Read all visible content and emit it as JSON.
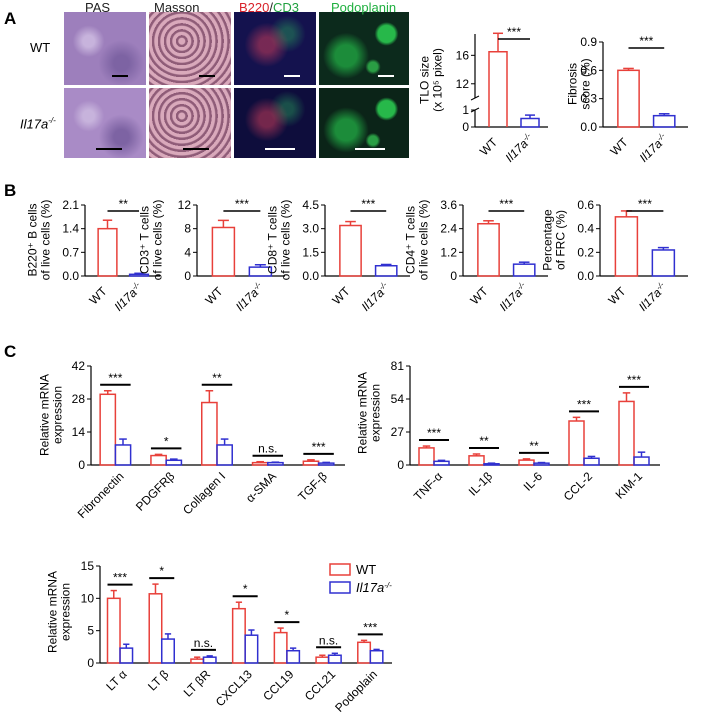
{
  "panel_letters": [
    "A",
    "B",
    "C"
  ],
  "histology": {
    "rows": [
      "WT",
      "Il17a-/-"
    ],
    "columns": [
      "PAS",
      "Masson",
      "B220",
      "/",
      "CD3",
      "Podoplanin"
    ]
  },
  "colors": {
    "wt": "#e8403a",
    "ko": "#3030d0"
  },
  "legend": {
    "wt": "WT",
    "ko": "Il17a-/-"
  },
  "chart_data": [
    {
      "id": "tlo",
      "type": "bar",
      "categories": [
        "WT",
        "Il17a-/-"
      ],
      "values": [
        16.5,
        0.5
      ],
      "errors": [
        2.6,
        0.2
      ],
      "ylabel": [
        "TLO size",
        "(x 10⁵ pixel)"
      ],
      "ticks": [
        "1",
        "0",
        "12",
        "16"
      ],
      "ylim": [
        0,
        19
      ],
      "axis_break": [
        1,
        10
      ],
      "significance": "***"
    },
    {
      "id": "fib",
      "type": "bar",
      "categories": [
        "WT",
        "Il17a-/-"
      ],
      "values": [
        0.6,
        0.12
      ],
      "errors": [
        0.02,
        0.02
      ],
      "ylabel": [
        "Fibrosis",
        "score (%)"
      ],
      "ticks": [
        "0.0",
        "0.3",
        "0.6",
        "0.9"
      ],
      "ylim": [
        0,
        0.9
      ],
      "significance": "***"
    },
    {
      "id": "b220",
      "type": "bar",
      "categories": [
        "WT",
        "Il17a-/-"
      ],
      "values": [
        1.4,
        0.05
      ],
      "errors": [
        0.25,
        0.03
      ],
      "ylabel": [
        "B220⁺ B cells",
        "of live cells (%)"
      ],
      "ticks": [
        "0.0",
        "0.7",
        "1.4",
        "2.1"
      ],
      "ylim": [
        0,
        2.1
      ],
      "significance": "**"
    },
    {
      "id": "cd3",
      "type": "bar",
      "categories": [
        "WT",
        "Il17a-/-"
      ],
      "values": [
        8.2,
        1.5
      ],
      "errors": [
        1.2,
        0.4
      ],
      "ylabel": [
        "CD3⁺ T cells",
        "of live cells (%)"
      ],
      "ticks": [
        "0",
        "4",
        "8",
        "12"
      ],
      "ylim": [
        0,
        12
      ],
      "significance": "***"
    },
    {
      "id": "cd8",
      "type": "bar",
      "categories": [
        "WT",
        "Il17a-/-"
      ],
      "values": [
        3.2,
        0.65
      ],
      "errors": [
        0.25,
        0.08
      ],
      "ylabel": [
        "CD8⁺ T cells",
        "of live cells (%)"
      ],
      "ticks": [
        "0.0",
        "1.5",
        "3.0",
        "4.5"
      ],
      "ylim": [
        0,
        4.5
      ],
      "significance": "***"
    },
    {
      "id": "cd4",
      "type": "bar",
      "categories": [
        "WT",
        "Il17a-/-"
      ],
      "values": [
        2.65,
        0.6
      ],
      "errors": [
        0.15,
        0.1
      ],
      "ylabel": [
        "CD4⁺ T cells",
        "of live cells (%)"
      ],
      "ticks": [
        "0",
        "1.2",
        "2.4",
        "3.6"
      ],
      "ylim": [
        0,
        3.6
      ],
      "significance": "***"
    },
    {
      "id": "frc",
      "type": "bar",
      "categories": [
        "WT",
        "Il17a-/-"
      ],
      "values": [
        0.5,
        0.22
      ],
      "errors": [
        0.05,
        0.02
      ],
      "ylabel": [
        "Percentage",
        "of FRC (%)"
      ],
      "ticks": [
        "0.0",
        "0.2",
        "0.4",
        "0.6"
      ],
      "ylim": [
        0,
        0.6
      ],
      "significance": "***"
    },
    {
      "id": "fibro",
      "type": "bar",
      "categories": [
        "Fibronectin",
        "PDGFRβ",
        "Collagen I",
        "α-SMA",
        "TGF-β"
      ],
      "series": [
        {
          "name": "WT",
          "values": [
            30,
            4,
            26.5,
            1,
            1.6
          ],
          "errors": [
            1.5,
            0.5,
            5,
            0.4,
            0.6
          ]
        },
        {
          "name": "Il17a-/-",
          "values": [
            8.5,
            2,
            8.5,
            1,
            0.8
          ],
          "errors": [
            2.5,
            0.5,
            2.5,
            0.2,
            0.3
          ]
        }
      ],
      "significance": [
        "***",
        "*",
        "**",
        "n.s.",
        "***"
      ],
      "ylabel": [
        "Relative mRNA",
        "expression"
      ],
      "ticks": [
        "0",
        "14",
        "28",
        "42"
      ],
      "ylim": [
        0,
        42
      ]
    },
    {
      "id": "inflam",
      "type": "bar",
      "categories": [
        "TNF-α",
        "IL-1β",
        "IL-6",
        "CCL-2",
        "KIM-1"
      ],
      "series": [
        {
          "name": "WT",
          "values": [
            14,
            7.5,
            4,
            36,
            52
          ],
          "errors": [
            1.5,
            1.5,
            1,
            3,
            7
          ]
        },
        {
          "name": "Il17a-/-",
          "values": [
            3,
            1,
            1.5,
            5.5,
            6.5
          ],
          "errors": [
            0.8,
            0.5,
            0.5,
            1.5,
            4
          ]
        }
      ],
      "significance": [
        "***",
        "**",
        "**",
        "***",
        "***"
      ],
      "ylabel": [
        "Relative mRNA",
        "expression"
      ],
      "ticks": [
        "0",
        "27",
        "54",
        "81"
      ],
      "ylim": [
        0,
        81
      ]
    },
    {
      "id": "lympho",
      "type": "bar",
      "categories": [
        "LT α",
        "LT β",
        "LT βR",
        "CXCL13",
        "CCL19",
        "CCL21",
        "Podoplain"
      ],
      "series": [
        {
          "name": "WT",
          "values": [
            10,
            10.7,
            0.6,
            8.4,
            4.7,
            0.9,
            3.2
          ],
          "errors": [
            1.2,
            1.5,
            0.3,
            1,
            0.7,
            0.3,
            0.3
          ]
        },
        {
          "name": "Il17a-/-",
          "values": [
            2.3,
            3.7,
            0.9,
            4.3,
            1.9,
            1.2,
            1.9
          ],
          "errors": [
            0.6,
            0.8,
            0.2,
            0.8,
            0.4,
            0.3,
            0.2
          ]
        }
      ],
      "significance": [
        "***",
        "*",
        "n.s.",
        "*",
        "*",
        "n.s.",
        "***"
      ],
      "ylabel": [
        "Relative mRNA",
        "expression"
      ],
      "ticks": [
        "0",
        "5",
        "10",
        "15"
      ],
      "ylim": [
        0,
        15
      ]
    }
  ]
}
